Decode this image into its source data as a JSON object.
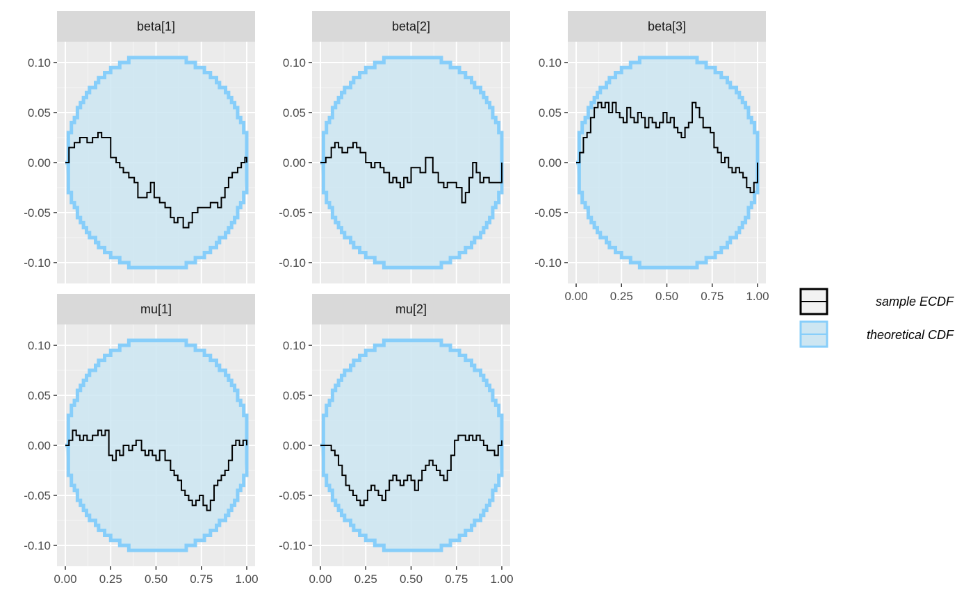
{
  "colors": {
    "panel_background": "#ebebeb",
    "strip_background": "#d9d9d9",
    "grid_major": "#ffffff",
    "grid_minor": "#f5f5f5",
    "ecdf_line": "#000000",
    "band_fill": "#cde6f2",
    "band_line": "#87cefa"
  },
  "legend": {
    "sample_label": "sample ECDF",
    "theoretical_label": "theoretical CDF"
  },
  "chart_data": {
    "type": "line",
    "description_kind": "ECDF difference plot with simultaneous confidence bands",
    "x_range": [
      0,
      1
    ],
    "y_range": [
      -0.11,
      0.11
    ],
    "x_ticks": [
      "0.00",
      "0.25",
      "0.50",
      "0.75",
      "1.00"
    ],
    "y_ticks": [
      "-0.10",
      "-0.05",
      "0.00",
      "0.05",
      "0.10"
    ],
    "band_max": 0.105,
    "grid": true,
    "legend_position": "right",
    "panels": [
      {
        "label": "beta[1]",
        "ecdf": [
          [
            0,
            0
          ],
          [
            0.02,
            0.015
          ],
          [
            0.05,
            0.02
          ],
          [
            0.08,
            0.025
          ],
          [
            0.12,
            0.02
          ],
          [
            0.15,
            0.025
          ],
          [
            0.18,
            0.03
          ],
          [
            0.2,
            0.025
          ],
          [
            0.22,
            0.025
          ],
          [
            0.25,
            0.005
          ],
          [
            0.28,
            0.0
          ],
          [
            0.3,
            -0.005
          ],
          [
            0.32,
            -0.01
          ],
          [
            0.35,
            -0.015
          ],
          [
            0.38,
            -0.02
          ],
          [
            0.4,
            -0.035
          ],
          [
            0.42,
            -0.035
          ],
          [
            0.45,
            -0.03
          ],
          [
            0.47,
            -0.02
          ],
          [
            0.49,
            -0.035
          ],
          [
            0.52,
            -0.04
          ],
          [
            0.55,
            -0.045
          ],
          [
            0.58,
            -0.055
          ],
          [
            0.6,
            -0.06
          ],
          [
            0.62,
            -0.055
          ],
          [
            0.65,
            -0.065
          ],
          [
            0.68,
            -0.06
          ],
          [
            0.7,
            -0.05
          ],
          [
            0.73,
            -0.045
          ],
          [
            0.76,
            -0.045
          ],
          [
            0.8,
            -0.04
          ],
          [
            0.84,
            -0.045
          ],
          [
            0.86,
            -0.035
          ],
          [
            0.88,
            -0.025
          ],
          [
            0.9,
            -0.015
          ],
          [
            0.92,
            -0.01
          ],
          [
            0.95,
            -0.005
          ],
          [
            0.97,
            0.0
          ],
          [
            0.99,
            0.005
          ],
          [
            1,
            0
          ]
        ]
      },
      {
        "label": "beta[2]",
        "ecdf": [
          [
            0,
            0
          ],
          [
            0.03,
            0.005
          ],
          [
            0.06,
            0.015
          ],
          [
            0.08,
            0.02
          ],
          [
            0.1,
            0.015
          ],
          [
            0.12,
            0.01
          ],
          [
            0.15,
            0.015
          ],
          [
            0.18,
            0.02
          ],
          [
            0.2,
            0.015
          ],
          [
            0.22,
            0.01
          ],
          [
            0.25,
            0.0
          ],
          [
            0.28,
            -0.005
          ],
          [
            0.3,
            0.0
          ],
          [
            0.33,
            -0.005
          ],
          [
            0.35,
            -0.01
          ],
          [
            0.38,
            -0.02
          ],
          [
            0.4,
            -0.015
          ],
          [
            0.42,
            -0.02
          ],
          [
            0.44,
            -0.025
          ],
          [
            0.46,
            -0.015
          ],
          [
            0.48,
            -0.02
          ],
          [
            0.5,
            -0.005
          ],
          [
            0.52,
            -0.005
          ],
          [
            0.55,
            -0.01
          ],
          [
            0.58,
            0.005
          ],
          [
            0.6,
            0.005
          ],
          [
            0.62,
            -0.01
          ],
          [
            0.65,
            -0.02
          ],
          [
            0.68,
            -0.025
          ],
          [
            0.7,
            -0.02
          ],
          [
            0.72,
            -0.02
          ],
          [
            0.75,
            -0.025
          ],
          [
            0.78,
            -0.04
          ],
          [
            0.8,
            -0.03
          ],
          [
            0.82,
            -0.015
          ],
          [
            0.84,
            0.0
          ],
          [
            0.86,
            -0.01
          ],
          [
            0.88,
            -0.02
          ],
          [
            0.9,
            -0.015
          ],
          [
            0.93,
            -0.02
          ],
          [
            0.96,
            -0.02
          ],
          [
            1,
            0
          ]
        ]
      },
      {
        "label": "beta[3]",
        "ecdf": [
          [
            0,
            0
          ],
          [
            0.02,
            0.01
          ],
          [
            0.04,
            0.025
          ],
          [
            0.06,
            0.03
          ],
          [
            0.08,
            0.045
          ],
          [
            0.1,
            0.055
          ],
          [
            0.12,
            0.06
          ],
          [
            0.14,
            0.055
          ],
          [
            0.16,
            0.06
          ],
          [
            0.18,
            0.05
          ],
          [
            0.2,
            0.06
          ],
          [
            0.22,
            0.05
          ],
          [
            0.24,
            0.045
          ],
          [
            0.26,
            0.04
          ],
          [
            0.28,
            0.055
          ],
          [
            0.3,
            0.045
          ],
          [
            0.32,
            0.04
          ],
          [
            0.34,
            0.05
          ],
          [
            0.36,
            0.045
          ],
          [
            0.38,
            0.035
          ],
          [
            0.4,
            0.045
          ],
          [
            0.42,
            0.04
          ],
          [
            0.44,
            0.035
          ],
          [
            0.46,
            0.04
          ],
          [
            0.48,
            0.05
          ],
          [
            0.5,
            0.04
          ],
          [
            0.52,
            0.045
          ],
          [
            0.54,
            0.035
          ],
          [
            0.56,
            0.03
          ],
          [
            0.58,
            0.025
          ],
          [
            0.6,
            0.035
          ],
          [
            0.62,
            0.04
          ],
          [
            0.64,
            0.06
          ],
          [
            0.66,
            0.055
          ],
          [
            0.68,
            0.045
          ],
          [
            0.7,
            0.035
          ],
          [
            0.72,
            0.035
          ],
          [
            0.74,
            0.03
          ],
          [
            0.76,
            0.015
          ],
          [
            0.78,
            0.01
          ],
          [
            0.8,
            0.0
          ],
          [
            0.82,
            0.005
          ],
          [
            0.84,
            -0.005
          ],
          [
            0.86,
            -0.01
          ],
          [
            0.88,
            -0.005
          ],
          [
            0.9,
            -0.01
          ],
          [
            0.92,
            -0.015
          ],
          [
            0.94,
            -0.025
          ],
          [
            0.96,
            -0.03
          ],
          [
            0.98,
            -0.02
          ],
          [
            1,
            0
          ]
        ]
      },
      {
        "label": "mu[1]",
        "ecdf": [
          [
            0,
            0
          ],
          [
            0.02,
            0.005
          ],
          [
            0.04,
            0.015
          ],
          [
            0.06,
            0.01
          ],
          [
            0.08,
            0.005
          ],
          [
            0.1,
            0.01
          ],
          [
            0.12,
            0.005
          ],
          [
            0.15,
            0.01
          ],
          [
            0.18,
            0.015
          ],
          [
            0.2,
            0.01
          ],
          [
            0.22,
            0.015
          ],
          [
            0.24,
            -0.01
          ],
          [
            0.26,
            -0.015
          ],
          [
            0.28,
            -0.005
          ],
          [
            0.3,
            -0.01
          ],
          [
            0.32,
            0.0
          ],
          [
            0.35,
            -0.005
          ],
          [
            0.37,
            0.0
          ],
          [
            0.39,
            0.005
          ],
          [
            0.42,
            -0.005
          ],
          [
            0.44,
            -0.01
          ],
          [
            0.46,
            -0.005
          ],
          [
            0.48,
            -0.01
          ],
          [
            0.5,
            -0.015
          ],
          [
            0.52,
            -0.005
          ],
          [
            0.55,
            -0.015
          ],
          [
            0.58,
            -0.025
          ],
          [
            0.6,
            -0.03
          ],
          [
            0.62,
            -0.035
          ],
          [
            0.64,
            -0.045
          ],
          [
            0.66,
            -0.05
          ],
          [
            0.68,
            -0.055
          ],
          [
            0.7,
            -0.06
          ],
          [
            0.72,
            -0.055
          ],
          [
            0.74,
            -0.05
          ],
          [
            0.76,
            -0.06
          ],
          [
            0.78,
            -0.065
          ],
          [
            0.8,
            -0.055
          ],
          [
            0.82,
            -0.04
          ],
          [
            0.84,
            -0.035
          ],
          [
            0.86,
            -0.03
          ],
          [
            0.88,
            -0.025
          ],
          [
            0.9,
            -0.015
          ],
          [
            0.92,
            0.0
          ],
          [
            0.94,
            0.005
          ],
          [
            0.96,
            0.0
          ],
          [
            0.98,
            0.005
          ],
          [
            1,
            0
          ]
        ]
      },
      {
        "label": "mu[2]",
        "ecdf": [
          [
            0,
            0
          ],
          [
            0.03,
            0.0
          ],
          [
            0.06,
            -0.005
          ],
          [
            0.08,
            -0.01
          ],
          [
            0.1,
            -0.02
          ],
          [
            0.12,
            -0.03
          ],
          [
            0.14,
            -0.04
          ],
          [
            0.16,
            -0.045
          ],
          [
            0.18,
            -0.05
          ],
          [
            0.2,
            -0.055
          ],
          [
            0.22,
            -0.06
          ],
          [
            0.24,
            -0.055
          ],
          [
            0.26,
            -0.045
          ],
          [
            0.28,
            -0.04
          ],
          [
            0.3,
            -0.045
          ],
          [
            0.32,
            -0.05
          ],
          [
            0.34,
            -0.055
          ],
          [
            0.36,
            -0.045
          ],
          [
            0.38,
            -0.035
          ],
          [
            0.4,
            -0.03
          ],
          [
            0.42,
            -0.035
          ],
          [
            0.44,
            -0.04
          ],
          [
            0.46,
            -0.035
          ],
          [
            0.48,
            -0.03
          ],
          [
            0.5,
            -0.035
          ],
          [
            0.52,
            -0.045
          ],
          [
            0.54,
            -0.035
          ],
          [
            0.56,
            -0.025
          ],
          [
            0.58,
            -0.02
          ],
          [
            0.6,
            -0.015
          ],
          [
            0.62,
            -0.02
          ],
          [
            0.64,
            -0.025
          ],
          [
            0.66,
            -0.03
          ],
          [
            0.68,
            -0.035
          ],
          [
            0.7,
            -0.025
          ],
          [
            0.72,
            -0.01
          ],
          [
            0.74,
            0.005
          ],
          [
            0.76,
            0.01
          ],
          [
            0.78,
            0.01
          ],
          [
            0.8,
            0.005
          ],
          [
            0.82,
            0.01
          ],
          [
            0.84,
            0.005
          ],
          [
            0.86,
            0.01
          ],
          [
            0.88,
            0.005
          ],
          [
            0.9,
            0.0
          ],
          [
            0.92,
            -0.005
          ],
          [
            0.94,
            -0.005
          ],
          [
            0.96,
            -0.01
          ],
          [
            0.98,
            0.0
          ],
          [
            1,
            0.005
          ]
        ]
      }
    ]
  }
}
